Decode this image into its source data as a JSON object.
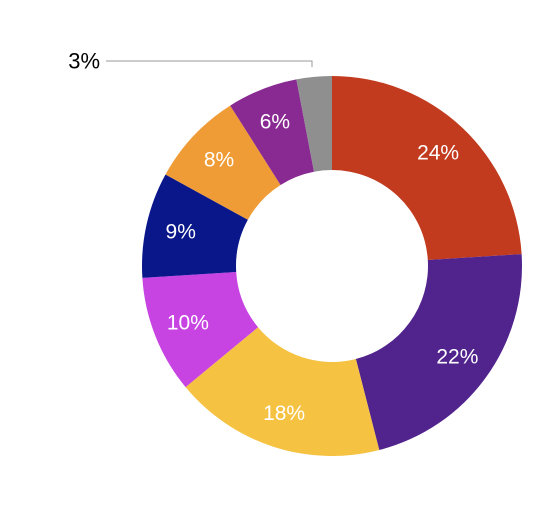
{
  "chart_data": {
    "type": "pie",
    "variant": "donut",
    "start": "12 o'clock",
    "direction": "clockwise",
    "title": "",
    "slices": [
      {
        "value": 24,
        "label": "24%",
        "color": "#c23b1f"
      },
      {
        "value": 22,
        "label": "22%",
        "color": "#51248d"
      },
      {
        "value": 18,
        "label": "18%",
        "color": "#f5c242"
      },
      {
        "value": 10,
        "label": "10%",
        "color": "#c744e3"
      },
      {
        "value": 9,
        "label": "9%",
        "color": "#0a178a"
      },
      {
        "value": 8,
        "label": "8%",
        "color": "#f09c36"
      },
      {
        "value": 6,
        "label": "6%",
        "color": "#892a92"
      },
      {
        "value": 3,
        "label": "3%",
        "color": "#8f8f8f",
        "label_placement": "outside-callout"
      }
    ]
  }
}
